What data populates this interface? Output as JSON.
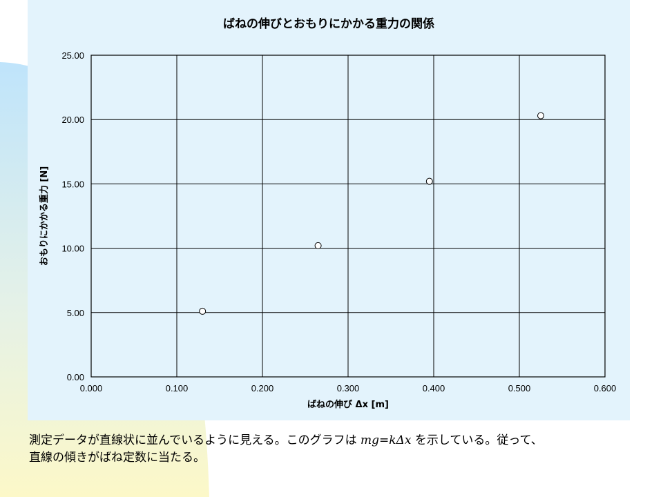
{
  "chart_data": {
    "type": "scatter",
    "title": "ばねの伸びとおもりにかかる重力の関係",
    "xlabel": "ばねの伸び Δx [m]",
    "ylabel": "おもりにかかる重力 [N]",
    "xlim": [
      0,
      0.6
    ],
    "ylim": [
      0,
      25
    ],
    "x_ticks": [
      "0.000",
      "0.100",
      "0.200",
      "0.300",
      "0.400",
      "0.500",
      "0.600"
    ],
    "y_ticks": [
      "0.00",
      "5.00",
      "10.00",
      "15.00",
      "20.00",
      "25.00"
    ],
    "grid": true,
    "legend": "none",
    "series": [
      {
        "x": [
          0.13,
          0.265,
          0.395,
          0.525
        ],
        "y": [
          5.1,
          10.2,
          15.2,
          20.3
        ]
      }
    ]
  },
  "caption": {
    "line1_before": "測定データが直線状に並んでいるように見える。このグラフは ",
    "formula": "mg=kΔx",
    "line1_after": " を示している。従って、",
    "line2": "直線の傾きがばね定数に当たる。"
  },
  "colors": {
    "panel": "#e3f3fc",
    "grid": "#000000",
    "marker_fill": "#ffffff",
    "marker_stroke": "#000000"
  }
}
